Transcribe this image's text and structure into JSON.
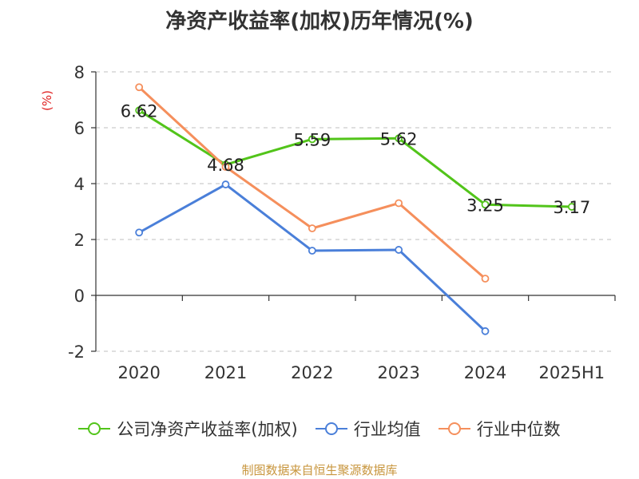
{
  "chart_data": {
    "type": "line",
    "title": "净资产收益率(加权)历年情况(%)",
    "ylabel": "(%)",
    "xlabel": "",
    "categories": [
      "2020",
      "2021",
      "2022",
      "2023",
      "2024",
      "2025H1"
    ],
    "ylim": [
      -2,
      8
    ],
    "yticks": [
      -2,
      0,
      2,
      4,
      6,
      8
    ],
    "grid": true,
    "legend_position": "bottom",
    "series": [
      {
        "name": "公司净资产收益率(加权)",
        "color": "#52c41a",
        "values": [
          6.62,
          4.68,
          5.59,
          5.62,
          3.25,
          3.17
        ],
        "labels": [
          "6.62",
          "4.68",
          "5.59",
          "5.62",
          "3.25",
          "3.17"
        ]
      },
      {
        "name": "行业均值",
        "color": "#4a7fd9",
        "values": [
          2.25,
          3.97,
          1.6,
          1.63,
          -1.28,
          null
        ]
      },
      {
        "name": "行业中位数",
        "color": "#f58f5c",
        "values": [
          7.45,
          4.6,
          2.4,
          3.3,
          0.6,
          null
        ]
      }
    ]
  },
  "source_text": "制图数据来自恒生聚源数据库"
}
